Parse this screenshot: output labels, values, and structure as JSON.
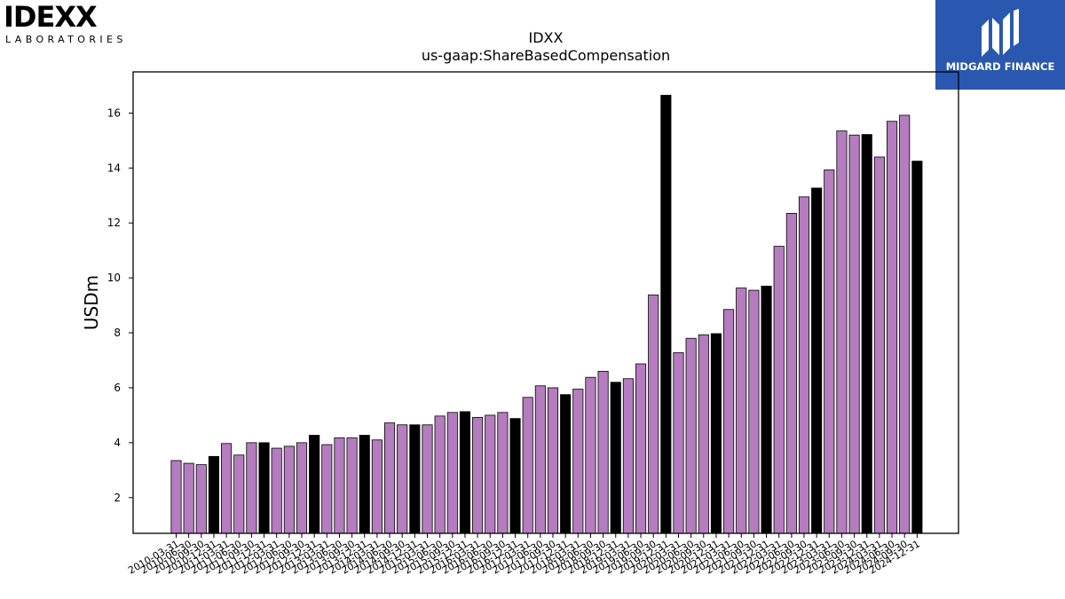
{
  "logos": {
    "left_word": "IDEXX",
    "left_sub": "LABORATORIES",
    "right_text": "MIDGARD FINANCE"
  },
  "colors": {
    "accent": "#b57cbf",
    "highlight": "#000000",
    "brand_blue": "#2a58b0"
  },
  "chart_data": {
    "type": "bar",
    "title": "IDXX",
    "subtitle": "us-gaap:ShareBasedCompensation",
    "xlabel": "",
    "ylabel": "USDm",
    "ylim": [
      0.7,
      17.5
    ],
    "yticks": [
      2,
      4,
      6,
      8,
      10,
      12,
      14,
      16
    ],
    "grid": false,
    "categories": [
      "2010-03-31",
      "2010-06-30",
      "2010-09-30",
      "2010-12-31",
      "2011-03-31",
      "2011-06-30",
      "2011-09-30",
      "2011-12-31",
      "2012-03-31",
      "2012-06-30",
      "2012-09-30",
      "2012-12-31",
      "2013-03-31",
      "2013-06-30",
      "2013-09-30",
      "2013-12-31",
      "2014-03-31",
      "2014-06-30",
      "2014-09-30",
      "2014-12-31",
      "2015-03-31",
      "2015-06-30",
      "2015-09-30",
      "2015-12-31",
      "2016-03-31",
      "2016-06-30",
      "2016-09-30",
      "2016-12-31",
      "2017-03-31",
      "2017-06-30",
      "2017-09-30",
      "2017-12-31",
      "2018-03-31",
      "2018-06-30",
      "2018-09-30",
      "2018-12-31",
      "2019-03-31",
      "2019-06-30",
      "2019-09-30",
      "2019-12-31",
      "2020-03-31",
      "2020-06-30",
      "2020-09-30",
      "2020-12-31",
      "2021-03-31",
      "2021-06-30",
      "2021-09-30",
      "2021-12-31",
      "2022-03-31",
      "2022-06-30",
      "2022-09-30",
      "2022-12-31",
      "2023-03-31",
      "2023-06-30",
      "2023-09-30",
      "2023-12-31",
      "2024-03-31",
      "2024-06-30",
      "2024-09-30",
      "2024-12-31"
    ],
    "values": [
      3.35,
      3.25,
      3.2,
      3.5,
      3.97,
      3.55,
      4.0,
      4.0,
      3.8,
      3.87,
      4.0,
      4.27,
      3.93,
      4.18,
      4.18,
      4.27,
      4.1,
      4.72,
      4.65,
      4.65,
      4.65,
      4.97,
      5.1,
      5.13,
      4.92,
      5.0,
      5.1,
      4.88,
      5.65,
      6.07,
      6.0,
      5.75,
      5.95,
      6.38,
      6.6,
      6.2,
      6.33,
      6.87,
      9.38,
      16.65,
      7.28,
      7.8,
      7.93,
      7.97,
      8.85,
      9.63,
      9.55,
      9.7,
      11.15,
      12.35,
      12.95,
      13.27,
      13.93,
      15.35,
      15.2,
      15.22,
      14.4,
      15.7,
      15.92,
      14.25
    ],
    "highlighted": [
      3,
      7,
      11,
      15,
      19,
      23,
      27,
      31,
      35,
      39,
      43,
      47,
      51,
      55,
      59
    ]
  }
}
